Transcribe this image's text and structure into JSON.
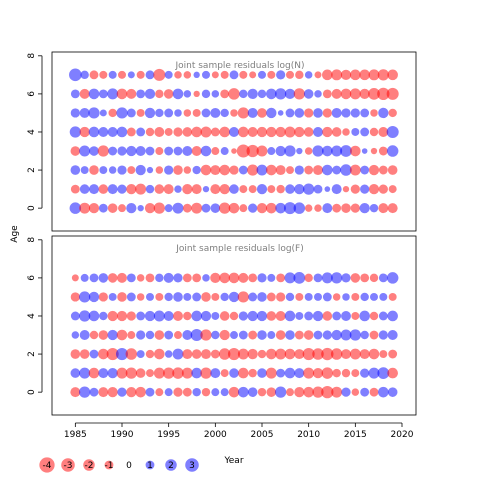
{
  "chart_data": [
    {
      "type": "scatter",
      "title": "Joint sample residuals log(N)",
      "xlim": [
        1982.5,
        2021.5
      ],
      "ylim": [
        -1.2,
        8.2
      ],
      "yticks": [
        "0",
        "2",
        "4",
        "6",
        "8"
      ],
      "ages": [
        0,
        1,
        2,
        3,
        4,
        5,
        6,
        7
      ],
      "years_start": 1985,
      "years_end": 2019,
      "residuals": [
        [
          1.6,
          -1.4,
          -1.2,
          0.8,
          -1.0,
          -0.6,
          1.2,
          0.3,
          -1.2,
          -1.5,
          0.6,
          1.4,
          -0.8,
          -1.4,
          0.8,
          1.0,
          -1.5,
          -1.3,
          -0.6,
          0.9,
          -1.2,
          -1.3,
          1.3,
          1.8,
          1.6,
          -0.5,
          -0.5,
          1.1,
          -0.8,
          -1.0,
          -0.9,
          1.2,
          0.7,
          -1.1,
          -1.1
        ],
        [
          -0.8,
          1.0,
          1.1,
          -1.0,
          1.1,
          0.9,
          -1.2,
          -1.4,
          0.7,
          -1.0,
          -1.1,
          0.5,
          -1.2,
          -1.1,
          0.3,
          -1.1,
          -1.2,
          1.0,
          -0.6,
          -0.6,
          1.2,
          -0.6,
          -0.7,
          1.0,
          1.2,
          1.5,
          0.8,
          0.2,
          1.1,
          -0.3,
          -0.9,
          0.9,
          -1.2,
          -0.9,
          -0.6
        ],
        [
          1.0,
          0.6,
          -1.0,
          0.6,
          0.5,
          0.9,
          -0.6,
          1.2,
          0.3,
          -0.5,
          0.9,
          -1.0,
          -0.5,
          0.7,
          -1.3,
          -1.1,
          -1.3,
          -0.9,
          0.8,
          -1.5,
          1.4,
          -1.3,
          -1.1,
          -0.6,
          0.9,
          -0.8,
          -1.1,
          1.3,
          0.8,
          1.6,
          -1.4,
          0.8,
          -1.2,
          -0.8,
          -1.0
        ],
        [
          -1.0,
          1.4,
          1.0,
          -1.5,
          0.8,
          0.9,
          1.2,
          1.1,
          0.8,
          -0.6,
          0.8,
          0.8,
          1.1,
          -1.1,
          1.3,
          -0.6,
          0.6,
          -0.2,
          -2.2,
          -1.9,
          -1.4,
          0.6,
          1.2,
          1.5,
          0.3,
          -0.5,
          1.5,
          1.3,
          1.4,
          1.7,
          -1.3,
          0.2,
          -0.3,
          -0.8,
          1.6
        ],
        [
          1.5,
          -1.2,
          1.3,
          1.1,
          1.1,
          1.3,
          -0.8,
          0.8,
          -0.7,
          -1.1,
          -0.6,
          -0.9,
          -1.0,
          -1.3,
          -1.4,
          -0.8,
          -1.3,
          1.1,
          -1.3,
          -1.1,
          -1.2,
          -1.2,
          -1.2,
          -1.4,
          -1.2,
          -1.0,
          1.1,
          -1.2,
          -1.0,
          -0.5,
          0.6,
          0.8,
          -0.7,
          -1.1,
          1.8
        ],
        [
          0.9,
          1.1,
          1.5,
          0.4,
          -0.7,
          1.5,
          0.8,
          -0.6,
          1.2,
          0.7,
          0.8,
          0.5,
          -0.5,
          -0.6,
          0.8,
          1.1,
          0.7,
          -0.5,
          -1.5,
          1.1,
          -1.0,
          1.2,
          0.2,
          0.8,
          1.0,
          -0.9,
          1.0,
          -0.9,
          1.1,
          0.9,
          0.9,
          0.8,
          -0.5,
          1.2,
          -0.7
        ],
        [
          0.8,
          -1.1,
          1.3,
          0.8,
          1.4,
          -1.3,
          -1.1,
          0.8,
          1.2,
          -0.7,
          -1.0,
          1.3,
          0.5,
          -0.3,
          0.7,
          0.5,
          -0.8,
          -1.6,
          0.7,
          1.2,
          0.7,
          1.3,
          1.5,
          1.2,
          -1.5,
          1.0,
          0.5,
          -0.8,
          -1.1,
          -1.3,
          -1.4,
          -1.2,
          -1.7,
          -1.9,
          -1.8
        ],
        [
          2.0,
          0.7,
          -0.8,
          -0.6,
          0.6,
          -0.6,
          0.4,
          -0.6,
          0.8,
          -1.8,
          0.6,
          -0.5,
          -0.5,
          0.3,
          0.6,
          -0.4,
          -0.6,
          0.8,
          -0.6,
          -0.4,
          0.6,
          -0.6,
          0.9,
          -0.6,
          -0.7,
          0.5,
          -0.4,
          -1.3,
          -1.4,
          -1.2,
          -1.3,
          -1.3,
          -1.4,
          -1.5,
          -1.3
        ]
      ]
    },
    {
      "type": "scatter",
      "title": "Joint sample residuals log(F)",
      "xlim": [
        1982.5,
        2021.5
      ],
      "ylim": [
        -1.2,
        8.2
      ],
      "yticks": [
        "0",
        "2",
        "4",
        "6",
        "8"
      ],
      "ages": [
        0,
        1,
        2,
        3,
        4,
        5,
        6
      ],
      "years_start": 1985,
      "years_end": 2019,
      "residuals": [
        [
          -1.1,
          1.5,
          0.8,
          -1.1,
          -1.2,
          0.9,
          -1.2,
          -1.3,
          0.8,
          -0.6,
          0.6,
          -0.9,
          -0.8,
          0.7,
          -0.7,
          0.6,
          0.6,
          -1.3,
          1.3,
          1.0,
          -0.7,
          -1.0,
          1.5,
          -0.6,
          -1.2,
          -1.3,
          -1.5,
          -1.9,
          -1.4,
          0.9,
          -0.5,
          0.8,
          -0.8,
          1.3,
          1.0
        ],
        [
          1.0,
          1.4,
          -1.3,
          1.1,
          1.2,
          -1.4,
          -1.5,
          -1.0,
          -0.6,
          -1.4,
          -1.5,
          -1.6,
          -1.4,
          1.3,
          -1.5,
          1.1,
          -0.6,
          1.0,
          -1.3,
          -0.7,
          1.0,
          -1.4,
          0.8,
          1.3,
          1.1,
          -1.4,
          -1.2,
          -1.6,
          -0.7,
          -0.7,
          -0.6,
          0.9,
          1.4,
          1.7,
          -1.3
        ],
        [
          -1.0,
          -1.0,
          0.8,
          -1.3,
          -1.8,
          1.8,
          -1.6,
          0.6,
          -0.7,
          -1.3,
          0.5,
          1.4,
          -1.1,
          -1.0,
          -1.1,
          -0.8,
          -1.6,
          -1.8,
          -1.4,
          -1.2,
          -0.7,
          -1.3,
          -1.4,
          -1.3,
          -1.1,
          -1.8,
          -1.6,
          -1.9,
          -1.6,
          -1.1,
          -1.4,
          -1.1,
          -1.3,
          -0.6,
          -0.8
        ],
        [
          0.5,
          1.1,
          -0.7,
          -1.0,
          1.2,
          -1.3,
          -0.6,
          0.9,
          0.7,
          -1.0,
          0.8,
          -0.6,
          1.1,
          1.8,
          -1.5,
          0.7,
          -1.2,
          0.6,
          0.8,
          -0.8,
          1.0,
          0.6,
          -1.0,
          1.0,
          -0.8,
          -1.0,
          0.8,
          0.9,
          1.2,
          1.4,
          1.5,
          0.7,
          -0.8,
          0.9,
          1.1
        ],
        [
          0.8,
          1.5,
          1.3,
          0.7,
          -1.2,
          -1.2,
          -0.9,
          0.8,
          1.2,
          1.4,
          1.1,
          -1.1,
          -0.7,
          1.3,
          1.2,
          0.6,
          -1.0,
          -0.7,
          0.9,
          1.2,
          1.2,
          -1.0,
          -1.1,
          1.3,
          0.6,
          0.8,
          1.2,
          -1.0,
          0.8,
          1.1,
          -0.6,
          1.3,
          -0.7,
          0.8,
          1.3
        ],
        [
          -0.9,
          1.5,
          1.2,
          -0.9,
          0.6,
          -1.0,
          0.8,
          -0.5,
          0.6,
          -0.6,
          0.7,
          1.0,
          0.6,
          0.8,
          -1.0,
          -0.6,
          0.7,
          1.2,
          -1.5,
          0.8,
          1.0,
          -0.8,
          -0.9,
          0.7,
          -0.6,
          0.6,
          0.6,
          0.8,
          -0.5,
          0.5,
          -0.6,
          0.7,
          0.6,
          0.6,
          -0.6
        ],
        [
          -0.4,
          0.6,
          0.8,
          1.0,
          -1.0,
          -1.1,
          0.8,
          -0.5,
          -0.8,
          0.7,
          1.1,
          0.9,
          -0.8,
          -0.8,
          0.5,
          -1.2,
          -1.3,
          -1.3,
          -1.1,
          -0.8,
          0.9,
          0.6,
          -0.8,
          1.4,
          1.7,
          -0.7,
          0.8,
          1.4,
          1.5,
          0.9,
          -1.0,
          -0.8,
          -0.7,
          0.8,
          1.6
        ]
      ]
    }
  ],
  "x_axis": {
    "label": "Year",
    "ticks": [
      1985,
      1990,
      1995,
      2000,
      2005,
      2010,
      2015,
      2020
    ]
  },
  "y_axis": {
    "label": "Age"
  },
  "legend": {
    "entries": [
      {
        "label": "-4",
        "value": -4
      },
      {
        "label": "-3",
        "value": -3
      },
      {
        "label": "-2",
        "value": -2
      },
      {
        "label": "-1",
        "value": -1
      },
      {
        "label": "0",
        "value": 0
      },
      {
        "label": "1",
        "value": 1
      },
      {
        "label": "2",
        "value": 2
      },
      {
        "label": "3",
        "value": 3
      }
    ]
  },
  "colors": {
    "negative": "#ff0000",
    "positive": "#0000ff",
    "marker_opacity": 0.5,
    "panel_title": "#7f7f7f"
  }
}
